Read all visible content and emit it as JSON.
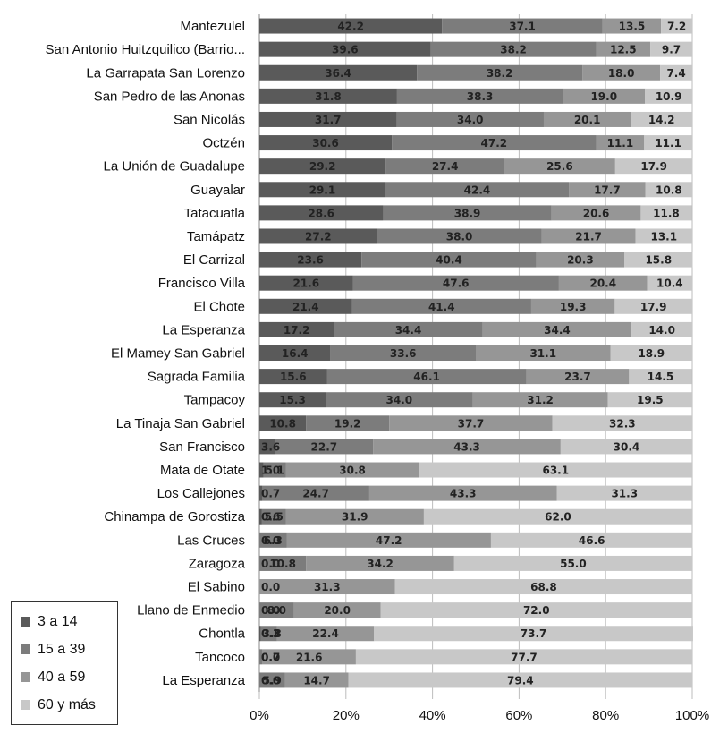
{
  "chart_data": {
    "type": "bar",
    "orientation": "horizontal",
    "stacked": true,
    "title": "",
    "xlabel": "",
    "ylabel": "",
    "xlim": [
      0,
      100
    ],
    "x_ticks": [
      "0%",
      "20%",
      "40%",
      "60%",
      "80%",
      "100%"
    ],
    "categories": [
      "Mantezulel",
      "San Antonio Huitzquilico (Barrio...",
      "La Garrapata San Lorenzo",
      "San Pedro de las Anonas",
      "San Nicolás",
      "Octzén",
      "La Unión de Guadalupe",
      "Guayalar",
      "Tatacuatla",
      "Tamápatz",
      "El Carrizal",
      "Francisco Villa",
      "El Chote",
      "La Esperanza",
      "El Mamey San Gabriel",
      "Sagrada Familia",
      "Tampacoy",
      "La Tinaja San Gabriel",
      "San Francisco",
      "Mata de Otate",
      "Los Callejones",
      "Chinampa de Gorostiza",
      "Las Cruces",
      "Zaragoza",
      "El Sabino",
      "Llano de Enmedio",
      "Chontla",
      "Tancoco",
      "La Esperanza"
    ],
    "series": [
      {
        "name": "3 a 14",
        "color": "#5a5a5a",
        "values": [
          42.2,
          39.6,
          36.4,
          31.8,
          31.7,
          30.6,
          29.2,
          29.1,
          28.6,
          27.2,
          23.6,
          21.6,
          21.4,
          17.2,
          16.4,
          15.6,
          15.3,
          10.8,
          3.6,
          1.0,
          0.7,
          0.6,
          0.0,
          0.0,
          0.0,
          0.0,
          0.3,
          0.0,
          0.0
        ],
        "labels": [
          "42.2",
          "39.6",
          "36.4",
          "31.8",
          "31.7",
          "30.6",
          "29.2",
          "29.1",
          "28.6",
          "27.2",
          "23.6",
          "21.6",
          "21.4",
          "17.2",
          "16.4",
          "15.6",
          "15.3",
          "10.8",
          "3.6",
          "1.0",
          "0.7",
          "0.6",
          "0.0",
          "0.0",
          "0.0",
          "0.0",
          "0.3",
          "0.0",
          "0.0"
        ]
      },
      {
        "name": "15 a 39",
        "color": "#7c7c7c",
        "values": [
          37.1,
          38.2,
          38.2,
          38.3,
          34.0,
          47.2,
          27.4,
          42.4,
          38.9,
          38.0,
          40.4,
          47.6,
          41.4,
          34.4,
          33.6,
          46.1,
          34.0,
          19.2,
          22.7,
          5.1,
          24.7,
          5.5,
          6.3,
          10.8,
          0.0,
          8.0,
          3.8,
          0.7,
          5.9
        ],
        "labels": [
          "37.1",
          "38.2",
          "38.2",
          "38.3",
          "34.0",
          "47.2",
          "27.4",
          "42.4",
          "38.9",
          "38.0",
          "40.4",
          "47.6",
          "41.4",
          "34.4",
          "33.6",
          "46.1",
          "34.0",
          "19.2",
          "22.7",
          "5.1",
          "24.7",
          "5.5",
          "6.3",
          "10.8",
          "",
          "8.0",
          "3.8",
          "0.7",
          "5.9"
        ]
      },
      {
        "name": "40 a 59",
        "color": "#969696",
        "values": [
          13.5,
          12.5,
          18.0,
          19.0,
          20.1,
          11.1,
          25.6,
          17.7,
          20.6,
          21.7,
          20.3,
          20.4,
          19.3,
          34.4,
          31.1,
          23.7,
          31.2,
          37.7,
          43.3,
          30.8,
          43.3,
          31.9,
          47.2,
          34.2,
          31.3,
          20.0,
          22.4,
          21.6,
          14.7
        ],
        "labels": [
          "13.5",
          "12.5",
          "18.0",
          "19.0",
          "20.1",
          "11.1",
          "25.6",
          "17.7",
          "20.6",
          "21.7",
          "20.3",
          "20.4",
          "19.3",
          "34.4",
          "31.1",
          "23.7",
          "31.2",
          "37.7",
          "43.3",
          "30.8",
          "43.3",
          "31.9",
          "47.2",
          "34.2",
          "31.3",
          "20.0",
          "22.4",
          "21.6",
          "14.7"
        ]
      },
      {
        "name": "60 y más",
        "color": "#c8c8c8",
        "values": [
          7.2,
          9.7,
          7.4,
          10.9,
          14.2,
          11.1,
          17.9,
          10.8,
          11.8,
          13.1,
          15.8,
          10.4,
          17.9,
          14.0,
          18.9,
          14.5,
          19.5,
          32.3,
          30.4,
          63.1,
          31.3,
          62.0,
          46.6,
          55.0,
          68.8,
          72.0,
          73.7,
          77.7,
          79.4
        ],
        "labels": [
          "7.2",
          "9.7",
          "7.4",
          "10.9",
          "14.2",
          "11.1",
          "17.9",
          "10.8",
          "11.8",
          "13.1",
          "15.8",
          "10.4",
          "17.9",
          "14.0",
          "18.9",
          "14.5",
          "19.5",
          "32.3",
          "30.4",
          "63.1",
          "31.3",
          "62.0",
          "46.6",
          "55.0",
          "68.8",
          "72.0",
          "73.7",
          "77.7",
          "79.4"
        ]
      }
    ],
    "legend_position": "bottom-left"
  }
}
